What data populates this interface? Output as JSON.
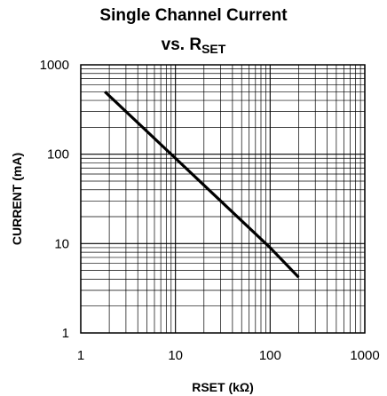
{
  "chart_data": {
    "type": "line",
    "title": "Single Channel Current",
    "subtitle_prefix": "vs. R",
    "subtitle_subscript": "SET",
    "xlabel": "RSET (kΩ)",
    "ylabel": "CURRENT (mA)",
    "x_scale": "log",
    "y_scale": "log",
    "xlim": [
      1,
      1000
    ],
    "ylim": [
      1,
      1000
    ],
    "x_ticks": [
      1,
      10,
      100,
      1000
    ],
    "y_ticks": [
      1,
      10,
      100,
      1000
    ],
    "x_tick_labels": [
      "1",
      "10",
      "100",
      "1000"
    ],
    "y_tick_labels": [
      "1",
      "10",
      "100",
      "1000"
    ],
    "grid": true,
    "series": [
      {
        "x": [
          1.8,
          10,
          100,
          200
        ],
        "y": [
          500,
          90,
          9,
          4.2
        ],
        "color": "#000000"
      }
    ]
  }
}
